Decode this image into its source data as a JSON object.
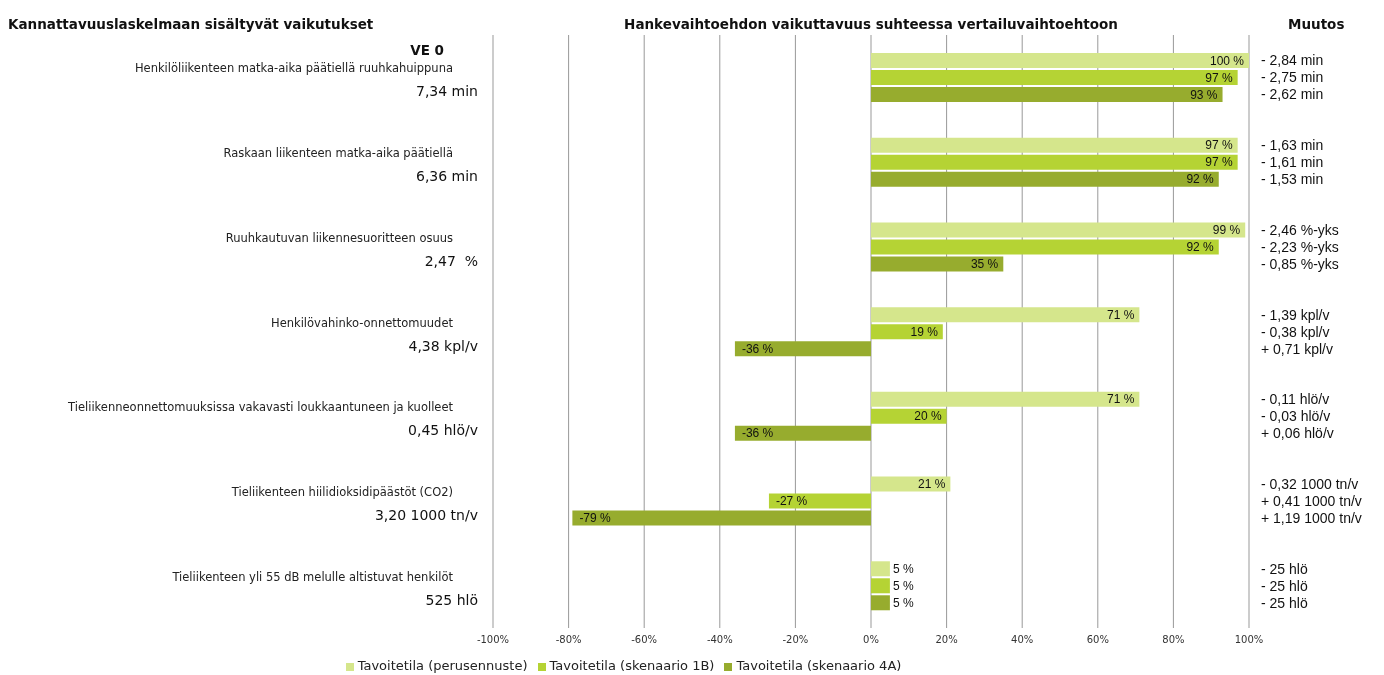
{
  "chart_data": {
    "type": "bar",
    "orientation": "horizontal",
    "title": "Hankevaihtoehdon vaikuttavuus suhteessa vertailuvaihtoehtoon",
    "categories": [
      "Henkilöliikenteen matka-aika päätiellä ruuhkahuippuna",
      "Raskaan liikenteen matka-aika päätiellä",
      "Ruuhkautuvan liikennesuoritteen osuus",
      "Henkilövahinko-onnettomuudet",
      "Tieliikenneonnettomuuksissa vakavasti loukkaantuneen ja kuolleet",
      "Tieliikenteen hiilidioksidipäästöt (CO2)",
      "Tieliikenteen yli 55 dB melulle altistuvat henkilöt"
    ],
    "series": [
      {
        "name": "Tavoitetila (perusennuste)",
        "color": "#d5e68c",
        "values": [
          100,
          97,
          99,
          71,
          71,
          21,
          5
        ],
        "value_labels": [
          "100 %",
          "97 %",
          "99 %",
          "71 %",
          "71 %",
          "21 %",
          "5 %"
        ]
      },
      {
        "name": "Tavoitetila (skenaario 1B)",
        "color": "#b5d334",
        "values": [
          97,
          97,
          92,
          19,
          20,
          -27,
          5
        ],
        "value_labels": [
          "97 %",
          "97 %",
          "92 %",
          "19 %",
          "20 %",
          "-27 %",
          "5 %"
        ]
      },
      {
        "name": "Tavoitetila (skenaario 4A)",
        "color": "#97ac2e",
        "values": [
          93,
          92,
          35,
          -36,
          -36,
          -79,
          5
        ],
        "value_labels": [
          "93 %",
          "92 %",
          "35 %",
          "-36 %",
          "-36 %",
          "-79 %",
          "5 %"
        ]
      }
    ],
    "xlim": [
      -100,
      100
    ],
    "xticks": [
      {
        "value": -100,
        "label": "-100%"
      },
      {
        "value": -80,
        "label": "-80%"
      },
      {
        "value": -60,
        "label": "-60%"
      },
      {
        "value": -40,
        "label": "-40%"
      },
      {
        "value": -20,
        "label": "-20%"
      },
      {
        "value": 0,
        "label": "0%"
      },
      {
        "value": 20,
        "label": "20%"
      },
      {
        "value": 40,
        "label": "40%"
      },
      {
        "value": 60,
        "label": "60%"
      },
      {
        "value": 80,
        "label": "80%"
      },
      {
        "value": 100,
        "label": "100%"
      }
    ],
    "grid": "x",
    "legend": "bottom",
    "annotations": [
      "Kannattavuuslaskelmaan sisältyvät vaikutukset",
      "Muutos",
      "VE 0",
      "7,34 min",
      "6,36 min",
      "2,47  %",
      "4,38 kpl/v",
      "0,45 hlö/v",
      "3,20 1000 tn/v",
      "525 hlö",
      "- 2,84 min",
      "- 2,75 min",
      "- 2,62 min",
      "- 1,63 min",
      "- 1,61 min",
      "- 1,53 min",
      "- 2,46 %-yks",
      "- 2,23 %-yks",
      "- 0,85 %-yks",
      "- 1,39 kpl/v",
      "- 0,38 kpl/v",
      "+ 0,71 kpl/v",
      "- 0,11 hlö/v",
      "- 0,03 hlö/v",
      "+ 0,06 hlö/v",
      "- 0,32 1000 tn/v",
      "+ 0,41 1000 tn/v",
      "+ 1,19 1000 tn/v",
      "- 25 hlö",
      "- 25 hlö",
      "- 25 hlö"
    ]
  }
}
